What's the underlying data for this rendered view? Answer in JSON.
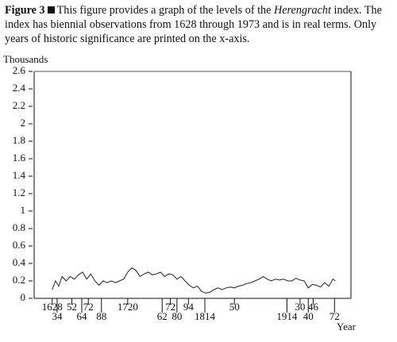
{
  "chart_data": {
    "type": "line",
    "caption": {
      "label": "Figure 3",
      "text": "This figure provides a graph of the levels of the ",
      "emphasis": "Herengracht",
      "text_end": " index. The index has biennial observations from 1628 through 1973 and is in real terms. Only years of historic significance are printed on the x-axis."
    },
    "y_label": "Thousands",
    "x_label": "Year",
    "color": "#222222",
    "xlim": [
      1606,
      1992
    ],
    "ylim": [
      0,
      2.6
    ],
    "yticks": [
      0,
      0.2,
      0.4,
      0.6,
      0.8,
      1,
      1.2,
      1.4,
      1.6,
      1.8,
      2,
      2.2,
      2.4,
      2.6
    ],
    "xticks": [
      1628,
      {
        "value": 1634,
        "label": "34"
      },
      {
        "value": 1652,
        "label": "52"
      },
      {
        "value": 1664,
        "label": "64"
      },
      {
        "value": 1672,
        "label": "72"
      },
      {
        "value": 1688,
        "label": "88"
      },
      1720,
      {
        "value": 1762,
        "label": "62"
      },
      {
        "value": 1772,
        "label": "72"
      },
      {
        "value": 1780,
        "label": "80"
      },
      {
        "value": 1794,
        "label": "94"
      },
      1814,
      {
        "value": 1850,
        "label": "50"
      },
      1914,
      {
        "value": 1930,
        "label": "30"
      },
      {
        "value": 1940,
        "label": "40"
      },
      {
        "value": 1946,
        "label": "46"
      },
      {
        "value": 1972,
        "label": "72"
      }
    ],
    "x": [
      1628,
      1632,
      1636,
      1640,
      1645,
      1650,
      1655,
      1660,
      1665,
      1670,
      1675,
      1680,
      1685,
      1690,
      1695,
      1700,
      1705,
      1710,
      1715,
      1720,
      1725,
      1730,
      1735,
      1740,
      1745,
      1750,
      1755,
      1760,
      1765,
      1770,
      1775,
      1780,
      1785,
      1790,
      1795,
      1800,
      1805,
      1810,
      1815,
      1820,
      1825,
      1830,
      1835,
      1840,
      1845,
      1850,
      1855,
      1860,
      1865,
      1870,
      1875,
      1880,
      1885,
      1890,
      1895,
      1900,
      1905,
      1910,
      1915,
      1920,
      1925,
      1930,
      1935,
      1940,
      1945,
      1950,
      1955,
      1960,
      1965,
      1970,
      1973
    ],
    "values": [
      0.1,
      0.2,
      0.14,
      0.25,
      0.2,
      0.25,
      0.22,
      0.27,
      0.3,
      0.22,
      0.28,
      0.2,
      0.15,
      0.2,
      0.18,
      0.2,
      0.18,
      0.2,
      0.22,
      0.3,
      0.35,
      0.32,
      0.25,
      0.28,
      0.3,
      0.27,
      0.28,
      0.3,
      0.25,
      0.28,
      0.27,
      0.22,
      0.25,
      0.2,
      0.15,
      0.12,
      0.14,
      0.08,
      0.06,
      0.07,
      0.1,
      0.12,
      0.1,
      0.12,
      0.13,
      0.12,
      0.14,
      0.15,
      0.17,
      0.18,
      0.2,
      0.22,
      0.25,
      0.22,
      0.2,
      0.22,
      0.21,
      0.22,
      0.2,
      0.2,
      0.23,
      0.21,
      0.2,
      0.12,
      0.16,
      0.15,
      0.13,
      0.18,
      0.14,
      0.22,
      0.2
    ]
  }
}
